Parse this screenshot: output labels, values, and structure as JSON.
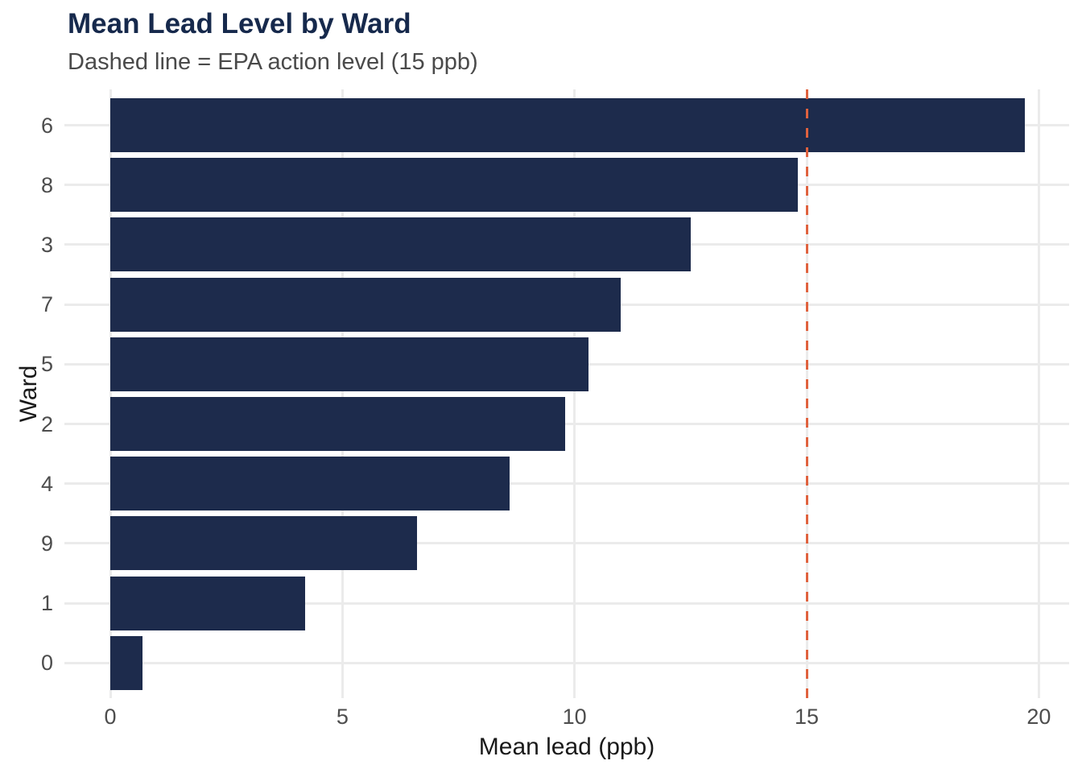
{
  "title": "Mean Lead Level by Ward",
  "subtitle": "Dashed line = EPA action level (15 ppb)",
  "colors": {
    "bar_fill": "#1d2b4c",
    "reference_line": "#e0623e",
    "gridline": "#ebebeb",
    "title_text": "#16294c",
    "subtitle_text": "#4a4a4a",
    "tick_text": "#4d4d4d",
    "axis_title_text": "#1a1a1a",
    "background": "#ffffff"
  },
  "chart_data": {
    "type": "bar",
    "orientation": "horizontal",
    "title": "Mean Lead Level by Ward",
    "subtitle": "Dashed line = EPA action level (15 ppb)",
    "categories": [
      "6",
      "8",
      "3",
      "7",
      "5",
      "2",
      "4",
      "9",
      "1",
      "0"
    ],
    "values": [
      19.7,
      14.8,
      12.5,
      11.0,
      10.3,
      9.8,
      8.6,
      6.6,
      4.2,
      0.7
    ],
    "xlabel": "Mean lead (ppb)",
    "ylabel": "Ward",
    "xlim": [
      0,
      20
    ],
    "x_ticks": [
      0,
      5,
      10,
      15,
      20
    ],
    "x_tick_labels": [
      "0",
      "5",
      "10",
      "15",
      "20"
    ],
    "reference_line": {
      "value": 15,
      "style": "dashed",
      "meaning": "EPA action level (15 ppb)"
    },
    "grid": true,
    "legend": false,
    "sorted": "descending"
  }
}
